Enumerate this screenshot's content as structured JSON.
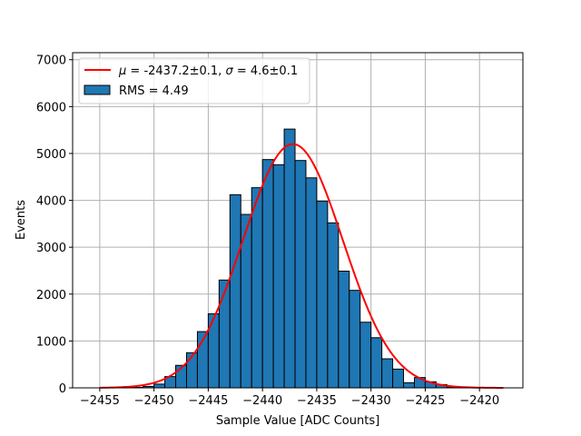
{
  "chart_data": {
    "type": "bar",
    "xlabel": "Sample Value [ADC Counts]",
    "ylabel": "Events",
    "xlim": [
      -2457.5,
      -2416
    ],
    "ylim": [
      0,
      7150
    ],
    "x_ticks": [
      -2455,
      -2450,
      -2445,
      -2440,
      -2435,
      -2430,
      -2425,
      -2420
    ],
    "x_tick_labels": [
      "−2455",
      "−2450",
      "−2445",
      "−2440",
      "−2435",
      "−2430",
      "−2425",
      "−2420"
    ],
    "y_ticks": [
      0,
      1000,
      2000,
      3000,
      4000,
      5000,
      6000,
      7000
    ],
    "y_tick_labels": [
      "0",
      "1000",
      "2000",
      "3000",
      "4000",
      "5000",
      "6000",
      "7000"
    ],
    "grid": true,
    "legend_position": "top-left",
    "histogram": {
      "name": "RMS = 4.49",
      "color": "#1f77b4",
      "bin_edges": [
        -2452.0,
        -2451.0,
        -2450.0,
        -2449.0,
        -2448.0,
        -2447.0,
        -2446.0,
        -2445.0,
        -2444.0,
        -2443.0,
        -2442.0,
        -2441.0,
        -2440.0,
        -2439.0,
        -2438.0,
        -2437.0,
        -2436.0,
        -2435.0,
        -2434.0,
        -2433.0,
        -2432.0,
        -2431.0,
        -2430.0,
        -2429.0,
        -2428.0,
        -2427.0,
        -2426.0,
        -2425.0,
        -2424.0,
        -2423.0,
        -2422.0
      ],
      "counts": [
        10,
        30,
        80,
        240,
        480,
        750,
        1200,
        1580,
        2300,
        4120,
        3700,
        4270,
        4870,
        4760,
        5520,
        4850,
        4480,
        3980,
        3520,
        2490,
        2080,
        1400,
        1070,
        620,
        400,
        110,
        220,
        130,
        70,
        20
      ]
    },
    "fit": {
      "name": "μ = -2437.2±0.1, σ = 4.6±0.1",
      "type": "gaussian",
      "mu": -2437.2,
      "sigma": 4.6,
      "amplitude": 5200,
      "x_range": [
        -2455,
        -2417.8
      ],
      "color": "#ff0000"
    }
  },
  "legend": {
    "fit_label_mu": "μ",
    "fit_label_rest1": " = -2437.2±0.1, ",
    "fit_label_sigma": "σ",
    "fit_label_rest2": " = 4.6±0.1",
    "hist_label": "RMS = 4.49"
  }
}
